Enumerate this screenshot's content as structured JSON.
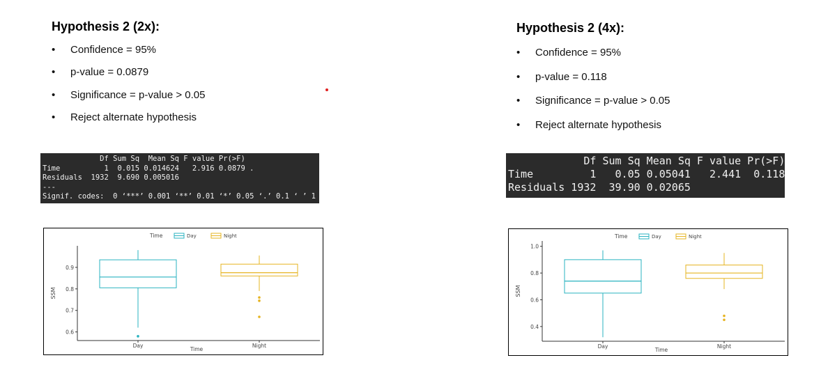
{
  "panels": [
    {
      "title": "Hypothesis 2 (2x):",
      "bullets": [
        "Confidence = 95%",
        "p-value = 0.0879",
        "Significance = p-value > 0.05",
        "Reject alternate hypothesis"
      ],
      "anova": [
        "             Df Sum Sq  Mean Sq F value Pr(>F)",
        "Time          1  0.015 0.014624   2.916 0.0879 .",
        "Residuals  1932  9.690 0.005016",
        "---",
        "Signif. codes:  0 ‘***’ 0.001 ‘**’ 0.01 ‘*’ 0.05 ‘.’ 0.1 ‘ ’ 1"
      ],
      "chart": {
        "type": "box",
        "legend_title": "Time",
        "x_label": "Time",
        "y_label": "SSM",
        "categories": [
          "Day",
          "Night"
        ],
        "series": [
          {
            "name": "Day",
            "color": "#2ab3c0",
            "whisker_low": 0.62,
            "q1": 0.805,
            "median": 0.855,
            "q3": 0.935,
            "whisker_high": 0.98,
            "outliers": [
              0.58
            ]
          },
          {
            "name": "Night",
            "color": "#e6b422",
            "whisker_low": 0.79,
            "q1": 0.86,
            "median": 0.875,
            "q3": 0.915,
            "whisker_high": 0.955,
            "outliers": [
              0.76,
              0.745,
              0.67
            ]
          }
        ],
        "ylim": [
          0.56,
          1.0
        ],
        "yticks": [
          0.6,
          0.7,
          0.8,
          0.9
        ]
      }
    },
    {
      "title": "Hypothesis 2 (4x):",
      "bullets": [
        "Confidence = 95%",
        "p-value = 0.118",
        "Significance = p-value > 0.05",
        "Reject alternate hypothesis"
      ],
      "anova": [
        "            Df Sum Sq Mean Sq F value Pr(>F)",
        "Time         1   0.05 0.05041   2.441  0.118",
        "Residuals 1932  39.90 0.02065"
      ],
      "chart": {
        "type": "box",
        "legend_title": "Time",
        "x_label": "Time",
        "y_label": "SSM",
        "categories": [
          "Day",
          "Night"
        ],
        "series": [
          {
            "name": "Day",
            "color": "#2ab3c0",
            "whisker_low": 0.32,
            "q1": 0.65,
            "median": 0.74,
            "q3": 0.9,
            "whisker_high": 0.97,
            "outliers": []
          },
          {
            "name": "Night",
            "color": "#e6b422",
            "whisker_low": 0.68,
            "q1": 0.76,
            "median": 0.8,
            "q3": 0.86,
            "whisker_high": 0.95,
            "outliers": [
              0.48,
              0.45
            ]
          }
        ],
        "ylim": [
          0.29,
          1.04
        ],
        "yticks": [
          0.4,
          0.6,
          0.8,
          {
            "value": 1,
            "label": "1.0"
          }
        ]
      }
    }
  ]
}
